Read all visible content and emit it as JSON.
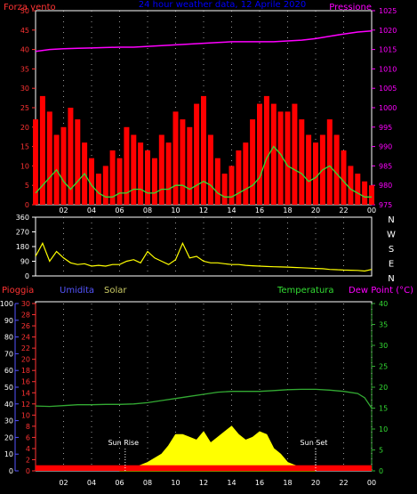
{
  "header": {
    "title": "24 hour weather data, 12 Aprile 2020",
    "left_label": "Forza vento ",
    "right_label": "Pressione"
  },
  "colors": {
    "wind_gust": "#ff0000",
    "wind_avg": "#33dd33",
    "wind_min": "#ffffff",
    "pressure": "#ff00ff",
    "direction": "#ffff00",
    "rain": "#ff0000",
    "humidity": "#5555ff",
    "solar": "#ffff00",
    "temperature": "#33aa33",
    "dewpoint": "#ff00ff",
    "grid": "#ffffff"
  },
  "chart_data": [
    {
      "type": "area",
      "id": "wind_pressure",
      "x_ticks": [
        "02",
        "04",
        "06",
        "08",
        "10",
        "12",
        "14",
        "16",
        "18",
        "20",
        "22",
        "00"
      ],
      "left_axis": {
        "label": "Forza vento ",
        "ticks": [
          0,
          5,
          10,
          15,
          20,
          25,
          30,
          35,
          40,
          45,
          50
        ],
        "range": [
          0,
          50
        ],
        "color": "#ff3333"
      },
      "right_axis": {
        "label": "Pressione",
        "ticks": [
          975,
          980,
          985,
          990,
          995,
          1000,
          1005,
          1010,
          1015,
          1020,
          1025
        ],
        "range": [
          975,
          1025
        ],
        "color": "#ff00ff"
      },
      "series": [
        {
          "key": "gust",
          "hours": [
            0,
            0.5,
            1,
            1.5,
            2,
            2.5,
            3,
            3.5,
            4,
            4.5,
            5,
            5.5,
            6,
            6.5,
            7,
            7.5,
            8,
            8.5,
            9,
            9.5,
            10,
            10.5,
            11,
            11.5,
            12,
            12.5,
            13,
            13.5,
            14,
            14.5,
            15,
            15.5,
            16,
            16.5,
            17,
            17.5,
            18,
            18.5,
            19,
            19.5,
            20,
            20.5,
            21,
            21.5,
            22,
            22.5,
            23,
            23.5,
            24
          ],
          "values": [
            22,
            28,
            24,
            18,
            20,
            25,
            22,
            16,
            12,
            8,
            10,
            14,
            12,
            20,
            18,
            16,
            14,
            12,
            18,
            16,
            24,
            22,
            20,
            26,
            28,
            18,
            12,
            8,
            10,
            14,
            16,
            22,
            26,
            28,
            26,
            24,
            24,
            26,
            22,
            18,
            16,
            18,
            22,
            18,
            14,
            10,
            8,
            6,
            5
          ]
        },
        {
          "key": "avg",
          "hours": [
            0,
            0.5,
            1,
            1.5,
            2,
            2.5,
            3,
            3.5,
            4,
            4.5,
            5,
            5.5,
            6,
            6.5,
            7,
            7.5,
            8,
            8.5,
            9,
            9.5,
            10,
            10.5,
            11,
            11.5,
            12,
            12.5,
            13,
            13.5,
            14,
            14.5,
            15,
            15.5,
            16,
            16.5,
            17,
            17.5,
            18,
            18.5,
            19,
            19.5,
            20,
            20.5,
            21,
            21.5,
            22,
            22.5,
            23,
            23.5,
            24
          ],
          "values": [
            3,
            5,
            7,
            9,
            6,
            4,
            6,
            8,
            5,
            3,
            2,
            2,
            3,
            3,
            4,
            4,
            3,
            3,
            4,
            4,
            5,
            5,
            4,
            5,
            6,
            5,
            3,
            2,
            2,
            3,
            4,
            5,
            7,
            12,
            15,
            13,
            10,
            9,
            8,
            6,
            7,
            9,
            10,
            8,
            6,
            4,
            3,
            2,
            2
          ]
        },
        {
          "key": "pressure",
          "hours": [
            0,
            1,
            2,
            3,
            4,
            5,
            6,
            7,
            8,
            9,
            10,
            11,
            12,
            13,
            14,
            15,
            16,
            17,
            18,
            19,
            20,
            21,
            22,
            23,
            24
          ],
          "values": [
            1014.5,
            1015,
            1015.2,
            1015.3,
            1015.4,
            1015.5,
            1015.6,
            1015.6,
            1015.8,
            1016,
            1016.2,
            1016.4,
            1016.6,
            1016.8,
            1017,
            1017,
            1017,
            1017,
            1017.2,
            1017.4,
            1017.8,
            1018.4,
            1019,
            1019.5,
            1019.8
          ]
        }
      ]
    },
    {
      "type": "line",
      "id": "wind_direction",
      "x_ticks": [
        "02",
        "04",
        "06",
        "08",
        "10",
        "12",
        "14",
        "16",
        "18",
        "20",
        "22",
        "00"
      ],
      "left_axis": {
        "ticks": [
          0,
          90,
          180,
          270,
          360
        ],
        "range": [
          0,
          360
        ]
      },
      "right_labels": [
        "N",
        "W",
        "S",
        "E",
        "N"
      ],
      "series": [
        {
          "key": "direction",
          "hours": [
            0,
            0.5,
            1,
            1.5,
            2,
            2.5,
            3,
            3.5,
            4,
            4.5,
            5,
            5.5,
            6,
            6.5,
            7,
            7.5,
            8,
            8.5,
            9,
            9.5,
            10,
            10.5,
            11,
            11.5,
            12,
            12.5,
            13,
            13.5,
            14,
            14.5,
            15,
            15.5,
            16,
            16.5,
            17,
            17.5,
            18,
            18.5,
            19,
            19.5,
            20,
            20.5,
            21,
            21.5,
            22,
            22.5,
            23,
            23.5,
            24
          ],
          "values": [
            120,
            200,
            90,
            150,
            110,
            80,
            70,
            75,
            60,
            65,
            60,
            70,
            70,
            90,
            100,
            80,
            150,
            110,
            90,
            70,
            100,
            200,
            110,
            120,
            90,
            80,
            80,
            75,
            70,
            70,
            65,
            62,
            60,
            58,
            56,
            55,
            54,
            52,
            50,
            48,
            46,
            44,
            40,
            38,
            36,
            35,
            34,
            30,
            40
          ]
        }
      ]
    },
    {
      "type": "line",
      "id": "rain_temp",
      "x_ticks": [
        "02",
        "04",
        "06",
        "08",
        "10",
        "12",
        "14",
        "16",
        "18",
        "20",
        "22",
        "00"
      ],
      "labels": {
        "rain": "Pioggia",
        "humidity": "Umidita",
        "solar": "Solar",
        "temperature": "Temperatura",
        "dewpoint": "Dew Point (°C)"
      },
      "humidity_axis": {
        "ticks": [
          0,
          10,
          20,
          30,
          40,
          50,
          60,
          70,
          80,
          90,
          100
        ],
        "range": [
          0,
          100
        ]
      },
      "rain_axis": {
        "ticks": [
          0,
          2,
          4,
          6,
          8,
          10,
          12,
          14,
          16,
          18,
          20,
          22,
          24,
          26,
          28,
          30
        ],
        "range": [
          0,
          30
        ]
      },
      "temp_axis": {
        "ticks": [
          0,
          5,
          10,
          15,
          20,
          25,
          30,
          35,
          40
        ],
        "range": [
          0,
          40
        ]
      },
      "annotations": {
        "sunrise": "Sun Rise",
        "sunset": "Sun Set",
        "sunrise_hour": 6.4,
        "sunset_hour": 20.0
      },
      "series": [
        {
          "key": "temperature",
          "hours": [
            0,
            1,
            2,
            3,
            4,
            5,
            6,
            7,
            8,
            9,
            10,
            11,
            12,
            13,
            14,
            15,
            16,
            17,
            18,
            19,
            20,
            21,
            22,
            23,
            23.5,
            24
          ],
          "values": [
            15.5,
            15.4,
            15.6,
            15.8,
            15.8,
            15.9,
            15.9,
            16,
            16.3,
            16.8,
            17.3,
            17.8,
            18.3,
            18.8,
            19,
            19,
            19,
            19.2,
            19.4,
            19.5,
            19.5,
            19.3,
            19,
            18.5,
            17.5,
            15
          ]
        },
        {
          "key": "solar",
          "hours": [
            6,
            7,
            8,
            9,
            9.5,
            10,
            10.5,
            11,
            11.5,
            12,
            12.5,
            13,
            13.5,
            14,
            14.5,
            15,
            15.5,
            16,
            16.5,
            17,
            17.5,
            18,
            19,
            20
          ],
          "values": [
            0,
            0.5,
            1.5,
            3,
            4.5,
            6.5,
            6.5,
            6,
            5.5,
            7,
            5,
            6,
            7,
            8,
            6.5,
            5.5,
            6,
            7,
            6.5,
            4,
            3,
            1.5,
            0.5,
            0
          ]
        },
        {
          "key": "rain",
          "hours": [
            0,
            24
          ],
          "values": [
            1,
            1
          ]
        }
      ]
    }
  ]
}
